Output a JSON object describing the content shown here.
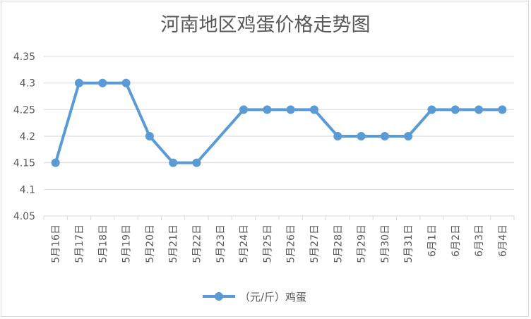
{
  "chart_data": {
    "type": "line",
    "title": "河南地区鸡蛋价格走势图",
    "categories": [
      "5月16日",
      "5月17日",
      "5月18日",
      "5月19日",
      "5月20日",
      "5月21日",
      "5月22日",
      "5月23日",
      "5月24日",
      "5月25日",
      "5月26日",
      "5月27日",
      "5月28日",
      "5月29日",
      "5月30日",
      "5月31日",
      "6月1日",
      "6月2日",
      "6月3日",
      "6月4日"
    ],
    "series": [
      {
        "name": "（元/斤）鸡蛋",
        "values": [
          4.15,
          4.3,
          4.3,
          4.3,
          4.2,
          4.15,
          4.15,
          null,
          4.25,
          4.25,
          4.25,
          4.25,
          4.2,
          4.2,
          4.2,
          4.2,
          4.25,
          4.25,
          4.25,
          4.25
        ],
        "color": "#5b9bd5"
      }
    ],
    "yticks": [
      "4.05",
      "4.1",
      "4.15",
      "4.2",
      "4.25",
      "4.3",
      "4.35"
    ],
    "ylim": [
      4.05,
      4.35
    ],
    "xlabel": "",
    "ylabel": "",
    "grid": true,
    "legend": "bottom",
    "colors": {
      "line": "#5b9bd5",
      "grid": "#d9d9d9",
      "text": "#595959"
    }
  }
}
